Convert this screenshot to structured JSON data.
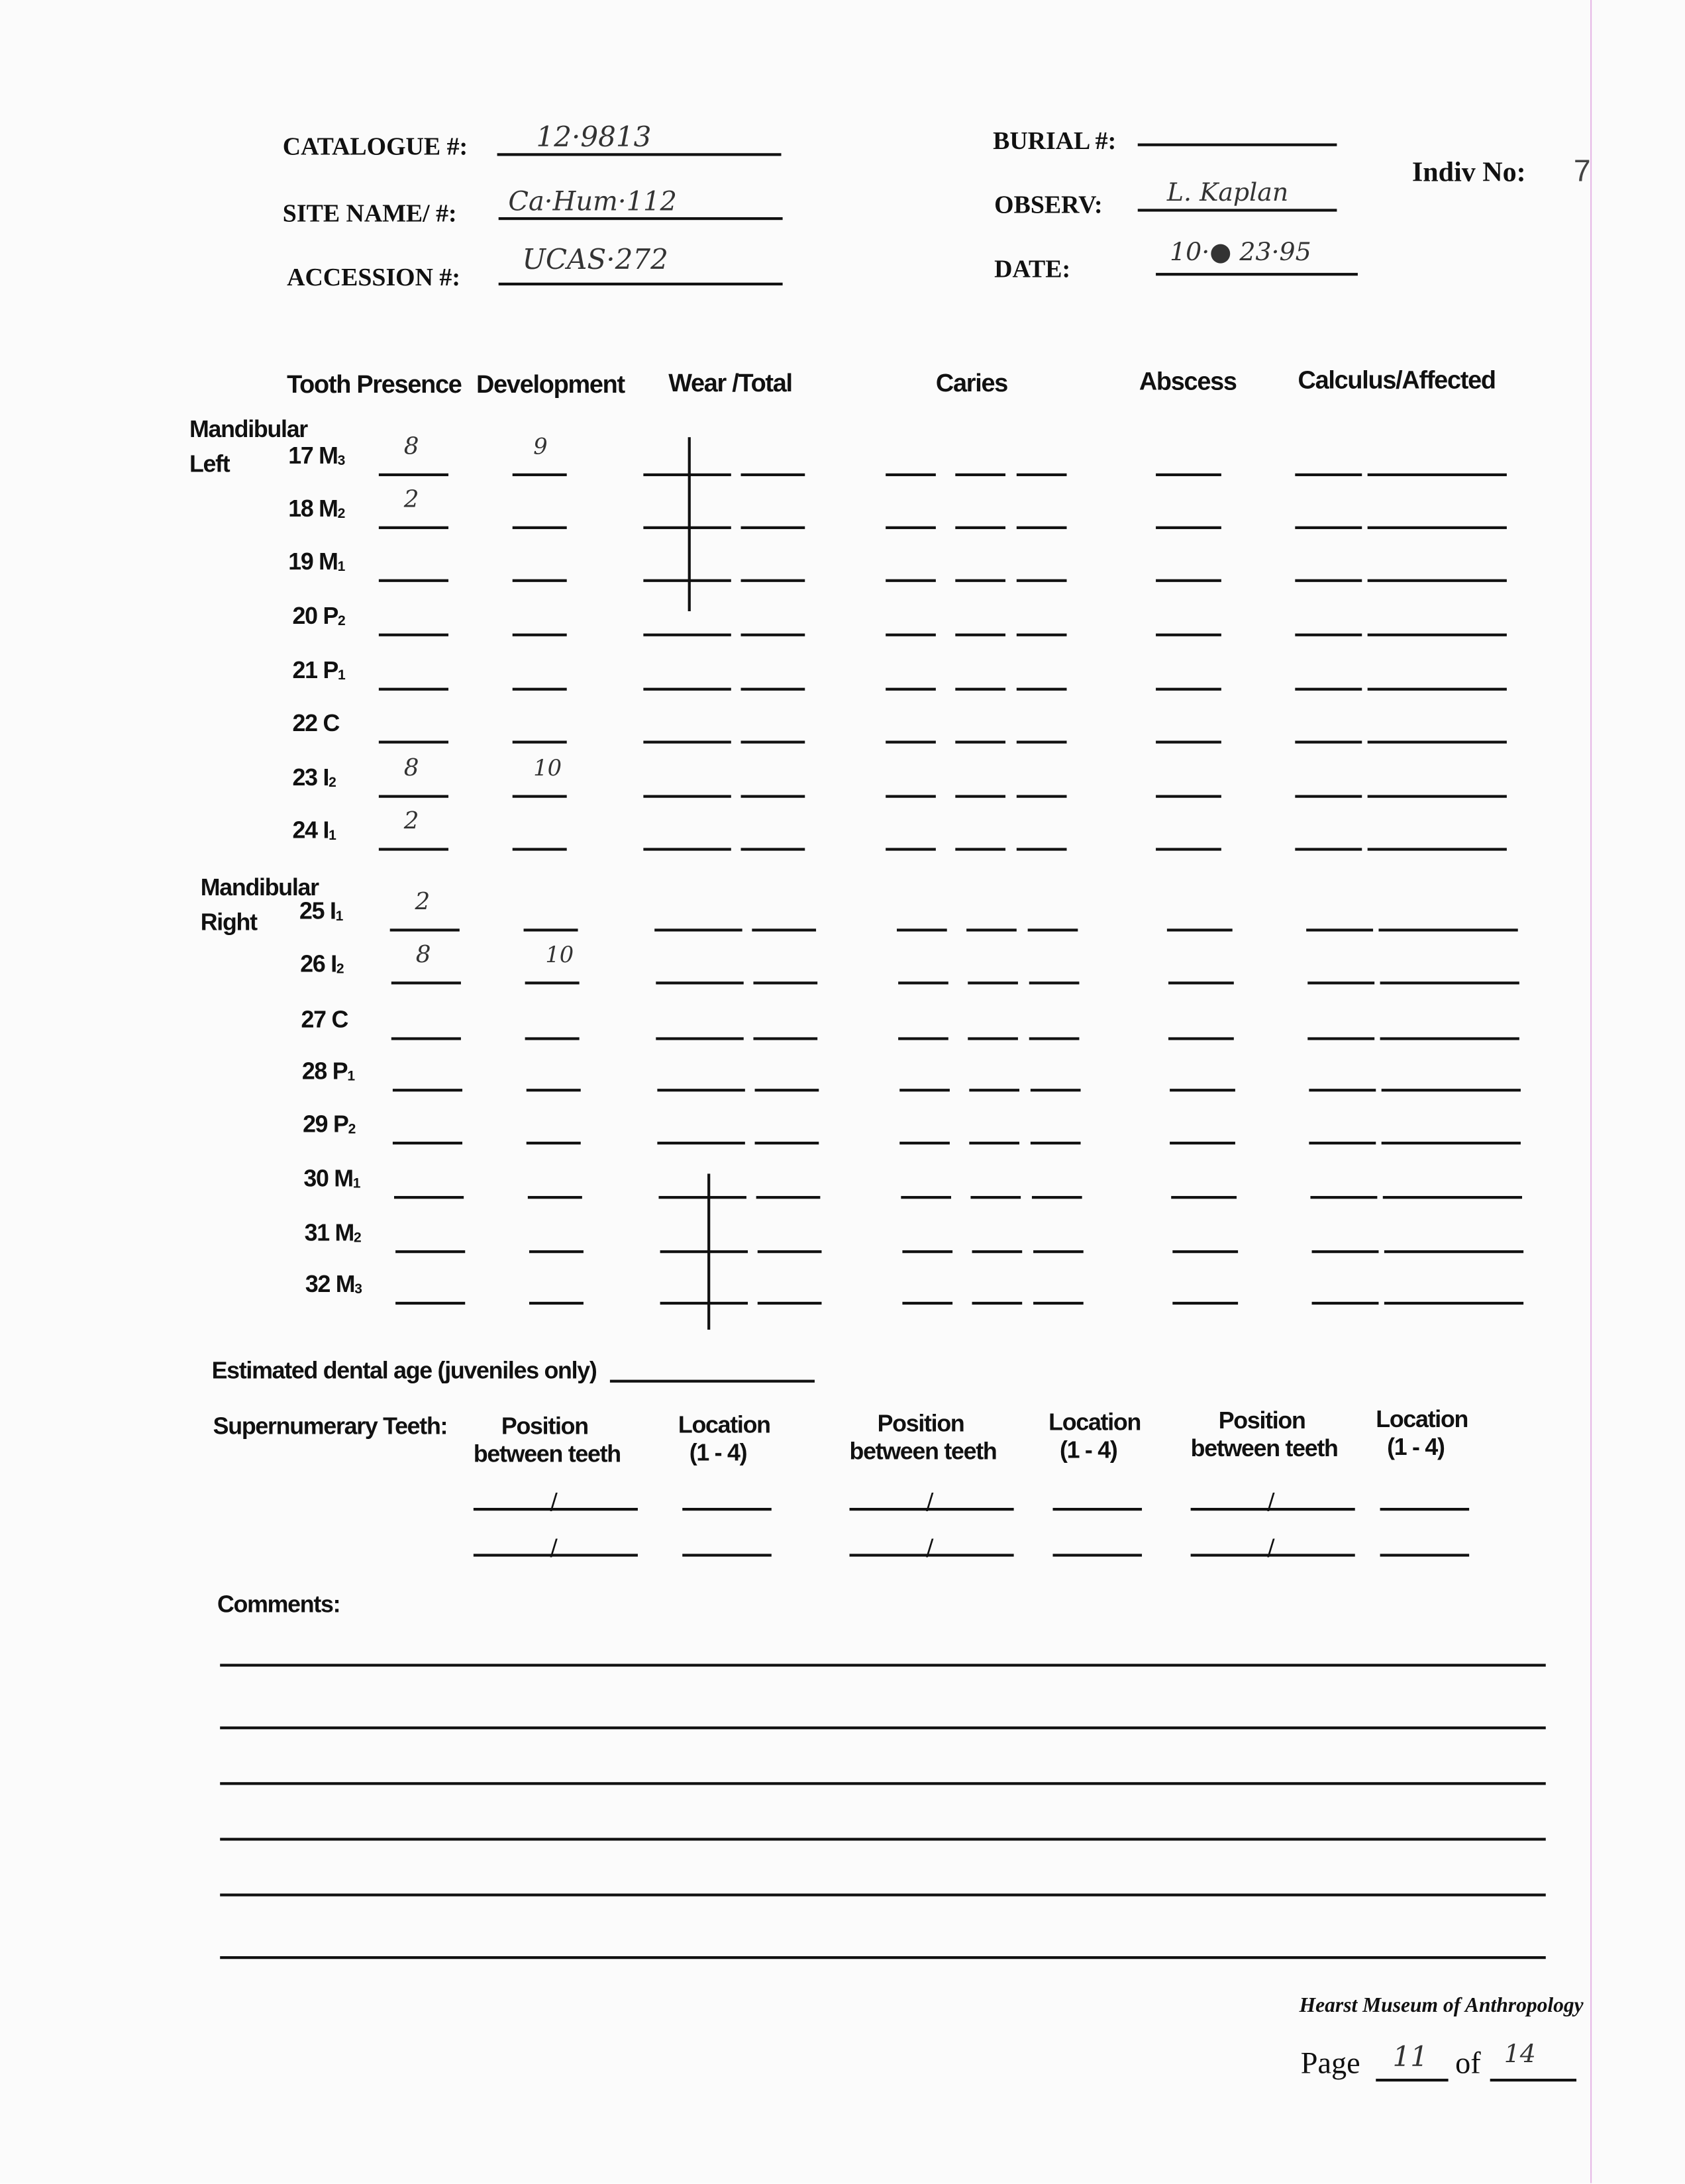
{
  "header": {
    "catalogue_label": "CATALOGUE #:",
    "catalogue_value": "12·9813",
    "site_label": "SITE NAME/ #:",
    "site_value": "Ca·Hum·112",
    "accession_label": "ACCESSION #:",
    "accession_value": "UCAS·272",
    "burial_label": "BURIAL #:",
    "burial_value": "",
    "observer_label": "OBSERV:",
    "observer_value": "L. Kaplan",
    "date_label": "DATE:",
    "date_value": "10·● 23·95",
    "indiv_label": "Indiv No:",
    "indiv_value": "7"
  },
  "columns": {
    "presence": "Tooth Presence",
    "development": "Development",
    "wear": "Wear /Total",
    "caries": "Caries",
    "abscess": "Abscess",
    "calculus": "Calculus/Affected"
  },
  "groups": {
    "left_line1": "Mandibular",
    "left_line2": "Left",
    "right_line1": "Mandibular",
    "right_line2": "Right"
  },
  "teeth": [
    {
      "num": "17",
      "tooth": "M",
      "sub": "3",
      "presence": "8",
      "development": "9",
      "wear_mark": true
    },
    {
      "num": "18",
      "tooth": "M",
      "sub": "2",
      "presence": "2",
      "development": "",
      "wear_mark": true
    },
    {
      "num": "19",
      "tooth": "M",
      "sub": "1",
      "presence": "",
      "development": "",
      "wear_mark": true
    },
    {
      "num": "20",
      "tooth": "P",
      "sub": "2",
      "presence": "",
      "development": "",
      "wear_mark": false
    },
    {
      "num": "21",
      "tooth": "P",
      "sub": "1",
      "presence": "",
      "development": "",
      "wear_mark": false
    },
    {
      "num": "22",
      "tooth": "C",
      "sub": "",
      "presence": "",
      "development": "",
      "wear_mark": false
    },
    {
      "num": "23",
      "tooth": "I",
      "sub": "2",
      "presence": "8",
      "development": "10",
      "wear_mark": false
    },
    {
      "num": "24",
      "tooth": "I",
      "sub": "1",
      "presence": "2",
      "development": "",
      "wear_mark": false
    },
    {
      "num": "25",
      "tooth": "I",
      "sub": "1",
      "presence": "2",
      "development": "",
      "wear_mark": false
    },
    {
      "num": "26",
      "tooth": "I",
      "sub": "2",
      "presence": "8",
      "development": "10",
      "wear_mark": false
    },
    {
      "num": "27",
      "tooth": "C",
      "sub": "",
      "presence": "",
      "development": "",
      "wear_mark": false
    },
    {
      "num": "28",
      "tooth": "P",
      "sub": "1",
      "presence": "",
      "development": "",
      "wear_mark": false
    },
    {
      "num": "29",
      "tooth": "P",
      "sub": "2",
      "presence": "",
      "development": "",
      "wear_mark": false
    },
    {
      "num": "30",
      "tooth": "M",
      "sub": "1",
      "presence": "",
      "development": "",
      "wear_mark": true
    },
    {
      "num": "31",
      "tooth": "M",
      "sub": "2",
      "presence": "",
      "development": "",
      "wear_mark": true
    },
    {
      "num": "32",
      "tooth": "M",
      "sub": "3",
      "presence": "",
      "development": "",
      "wear_mark": true
    }
  ],
  "dental_age": {
    "label": "Estimated dental age (juveniles only)",
    "value": ""
  },
  "supernumerary": {
    "label": "Supernumerary Teeth:",
    "position_label_1": "Position",
    "position_label_2": "between teeth",
    "location_label_1": "Location",
    "location_label_2": "(1 - 4)"
  },
  "comments": {
    "label": "Comments:",
    "value": ""
  },
  "footer": {
    "museum": "Hearst Museum of Anthropology",
    "page_label": "Page",
    "page_value": "11",
    "of_label": "of",
    "total_value": "14"
  }
}
